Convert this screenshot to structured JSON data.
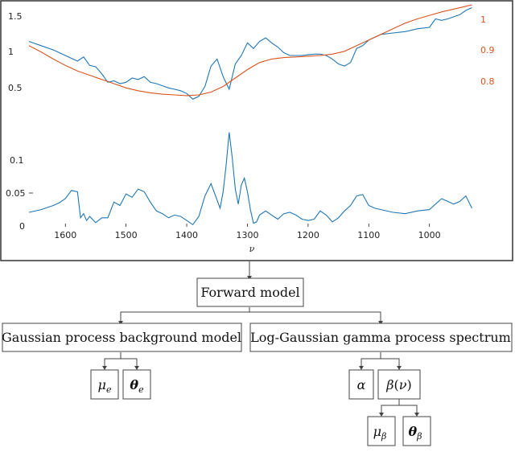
{
  "chart_data": [
    {
      "type": "line",
      "name_hint": "top",
      "xlim": [
        1660,
        920
      ],
      "y_left_ticks": [
        "1.5",
        "1",
        "0.5"
      ],
      "y_right_ticks": [
        "1",
        "0.9",
        "0.8"
      ],
      "series": [
        {
          "color": "#1f77b4",
          "x": [
            1660,
            1640,
            1620,
            1600,
            1580,
            1570,
            1560,
            1550,
            1540,
            1530,
            1520,
            1510,
            1500,
            1490,
            1480,
            1470,
            1460,
            1450,
            1440,
            1430,
            1420,
            1410,
            1400,
            1390,
            1380,
            1370,
            1360,
            1350,
            1340,
            1330,
            1320,
            1310,
            1300,
            1290,
            1280,
            1270,
            1260,
            1250,
            1240,
            1230,
            1220,
            1210,
            1200,
            1190,
            1180,
            1170,
            1160,
            1150,
            1140,
            1130,
            1120,
            1110,
            1100,
            1090,
            1080,
            1060,
            1040,
            1020,
            1000,
            990,
            980,
            970,
            960,
            950,
            940,
            930
          ],
          "y": [
            1.3,
            1.24,
            1.18,
            1.1,
            1.02,
            1.08,
            0.96,
            0.94,
            0.84,
            0.72,
            0.74,
            0.7,
            0.72,
            0.78,
            0.76,
            0.8,
            0.72,
            0.7,
            0.67,
            0.64,
            0.62,
            0.6,
            0.56,
            0.48,
            0.52,
            0.66,
            0.95,
            1.05,
            0.8,
            0.62,
            0.98,
            1.1,
            1.28,
            1.2,
            1.3,
            1.35,
            1.28,
            1.22,
            1.14,
            1.1,
            1.1,
            1.1,
            1.11,
            1.12,
            1.12,
            1.1,
            1.05,
            0.98,
            0.95,
            1.0,
            1.2,
            1.24,
            1.32,
            1.36,
            1.4,
            1.42,
            1.44,
            1.48,
            1.5,
            1.62,
            1.6,
            1.62,
            1.65,
            1.68,
            1.74,
            1.78
          ]
        },
        {
          "color": "#d9541e",
          "x": [
            1660,
            1640,
            1620,
            1600,
            1580,
            1560,
            1540,
            1520,
            1500,
            1480,
            1460,
            1440,
            1420,
            1400,
            1380,
            1360,
            1340,
            1320,
            1300,
            1280,
            1260,
            1240,
            1220,
            1200,
            1180,
            1160,
            1140,
            1120,
            1100,
            1080,
            1060,
            1040,
            1020,
            1000,
            980,
            960,
            940,
            930
          ],
          "y": [
            1.24,
            1.15,
            1.05,
            0.96,
            0.88,
            0.82,
            0.76,
            0.7,
            0.64,
            0.6,
            0.57,
            0.55,
            0.54,
            0.53,
            0.54,
            0.58,
            0.66,
            0.78,
            0.9,
            1.0,
            1.05,
            1.07,
            1.08,
            1.09,
            1.1,
            1.12,
            1.16,
            1.24,
            1.32,
            1.4,
            1.48,
            1.56,
            1.62,
            1.67,
            1.72,
            1.76,
            1.8,
            1.82
          ]
        }
      ]
    },
    {
      "type": "line",
      "name_hint": "bottom",
      "xlim": [
        1660,
        920
      ],
      "ylim": [
        0,
        0.14
      ],
      "y_ticks": [
        "0.1",
        "0.05",
        "0"
      ],
      "x_ticks": [
        1600,
        1500,
        1400,
        1300,
        1200,
        1100,
        1000
      ],
      "x_tick_labels": [
        "1600",
        "1500",
        "1400",
        "1300",
        "1200",
        "1100",
        "1000"
      ],
      "xlabel": "ν",
      "series": [
        {
          "color": "#1f77b4",
          "x": [
            1660,
            1640,
            1620,
            1610,
            1600,
            1590,
            1580,
            1575,
            1570,
            1565,
            1560,
            1550,
            1540,
            1530,
            1520,
            1510,
            1500,
            1490,
            1480,
            1470,
            1460,
            1450,
            1440,
            1430,
            1420,
            1410,
            1400,
            1390,
            1380,
            1370,
            1360,
            1350,
            1345,
            1340,
            1335,
            1330,
            1325,
            1320,
            1315,
            1310,
            1305,
            1300,
            1295,
            1290,
            1285,
            1280,
            1270,
            1260,
            1250,
            1240,
            1230,
            1220,
            1210,
            1200,
            1190,
            1180,
            1170,
            1160,
            1150,
            1140,
            1130,
            1120,
            1110,
            1100,
            1090,
            1080,
            1060,
            1040,
            1020,
            1000,
            990,
            980,
            970,
            960,
            950,
            940,
            930
          ],
          "y": [
            0.02,
            0.024,
            0.03,
            0.034,
            0.04,
            0.052,
            0.05,
            0.012,
            0.018,
            0.008,
            0.014,
            0.005,
            0.012,
            0.012,
            0.035,
            0.03,
            0.047,
            0.042,
            0.054,
            0.05,
            0.035,
            0.022,
            0.018,
            0.012,
            0.016,
            0.014,
            0.008,
            0.002,
            0.014,
            0.044,
            0.062,
            0.038,
            0.026,
            0.05,
            0.09,
            0.137,
            0.1,
            0.054,
            0.032,
            0.06,
            0.07,
            0.05,
            0.024,
            0.004,
            0.006,
            0.016,
            0.022,
            0.016,
            0.01,
            0.018,
            0.02,
            0.016,
            0.01,
            0.008,
            0.01,
            0.022,
            0.016,
            0.006,
            0.012,
            0.022,
            0.03,
            0.044,
            0.046,
            0.03,
            0.026,
            0.024,
            0.02,
            0.018,
            0.022,
            0.024,
            0.032,
            0.04,
            0.036,
            0.032,
            0.036,
            0.044,
            0.026
          ]
        }
      ]
    }
  ],
  "diagram": {
    "root": "Forward model",
    "left_child": "Gaussian process background model",
    "right_child": "Log-Gaussian gamma process spectrum"
  }
}
